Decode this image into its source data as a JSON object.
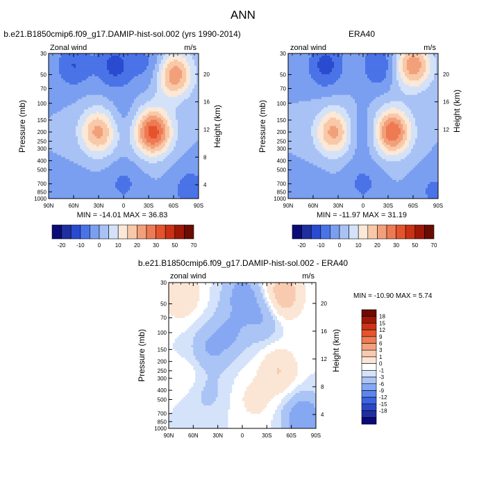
{
  "figure": {
    "title": "ANN"
  },
  "colors": {
    "test_palette": [
      "#0a0a78",
      "#1f2f9e",
      "#2a4bd0",
      "#4a73e8",
      "#7b9ff0",
      "#a8c2f5",
      "#d3e2f8",
      "#fbe8d6",
      "#f8c9a8",
      "#f2a07a",
      "#ee7a54",
      "#e5532c",
      "#c93214",
      "#9e1808",
      "#6b0c02"
    ],
    "diff_palette": [
      "#0a0a78",
      "#1e2ea0",
      "#2a46c8",
      "#3c64e2",
      "#5c86ee",
      "#86a8f2",
      "#aac4f6",
      "#d4e3fa",
      "#ffffff",
      "#fbe6d6",
      "#f8cbb0",
      "#f2a27e",
      "#ee7c56",
      "#e6532e",
      "#cc3316",
      "#9e1808",
      "#6b0c02"
    ]
  },
  "labels": {
    "panel1_title": "b.e21.B1850cmip6.f09_g17.DAMIP-hist-sol.002 (yrs 1990-2014)",
    "panel2_title": "ERA40",
    "panel3_title": "b.e21.B1850cmip6.f09_g17.DAMIP-hist-sol.002 - ERA40",
    "panel1_left": "Zonal wind",
    "panel2_left": "zonal wind",
    "panel3_left": "zonal wind",
    "units": "m/s",
    "ylabel_left": "Pressure (mb)",
    "ylabel_right": "Height (km)",
    "panel1_stats": "MIN = -14.01   MAX = 36.83",
    "panel2_stats": "MIN = -11.97   MAX = 31.19",
    "panel3_stats": "MIN = -10.90   MAX =   5.74"
  },
  "chart_data": [
    {
      "type": "heatmap",
      "title": "b.e21.B1850cmip6.f09_g17.DAMIP-hist-sol.002 (yrs 1990-2014)",
      "variable": "Zonal wind",
      "units": "m/s",
      "ylabel": "Pressure (mb)",
      "ylabel_right": "Height (km)",
      "x_ticks": [
        "90N",
        "60N",
        "30N",
        "0",
        "30S",
        "60S",
        "90S"
      ],
      "y_ticks": [
        30,
        50,
        70,
        100,
        150,
        200,
        250,
        300,
        400,
        500,
        700,
        850,
        1000
      ],
      "y_right_ticks": [
        20,
        16,
        12,
        8,
        4
      ],
      "y_scale": "log",
      "min": -14.01,
      "max": 36.83,
      "colorbar_labels": [
        "-20",
        "-10",
        "0",
        "10",
        "20",
        "30",
        "50",
        "70"
      ],
      "features": [
        {
          "lat": 60,
          "p": 40,
          "value": -10
        },
        {
          "lat": 10,
          "p": 40,
          "value": -12
        },
        {
          "lat": -35,
          "p": 40,
          "value": -8
        },
        {
          "lat": 30,
          "p": 200,
          "value": 22
        },
        {
          "lat": -35,
          "p": 200,
          "value": 33
        },
        {
          "lat": -60,
          "p": 50,
          "value": 25
        },
        {
          "lat": 0,
          "p": 150,
          "value": -4
        },
        {
          "lat": 0,
          "p": 700,
          "value": -6
        },
        {
          "lat": -80,
          "p": 800,
          "value": -8
        },
        {
          "lat": 55,
          "p": 900,
          "value": -4
        }
      ]
    },
    {
      "type": "heatmap",
      "title": "ERA40",
      "variable": "zonal wind",
      "units": "m/s",
      "ylabel": "Pressure (mb)",
      "ylabel_right": "Height (km)",
      "x_ticks": [
        "90N",
        "60N",
        "30N",
        "0",
        "30S",
        "60S",
        "90S"
      ],
      "y_ticks": [
        30,
        50,
        70,
        100,
        150,
        200,
        250,
        300,
        400,
        500,
        700,
        850,
        1000
      ],
      "y_right_ticks": [
        20,
        16,
        12
      ],
      "y_scale": "log",
      "min": -11.97,
      "max": 31.19,
      "colorbar_labels": [
        "-20",
        "-10",
        "0",
        "10",
        "20",
        "30",
        "50",
        "70"
      ],
      "features": [
        {
          "lat": 45,
          "p": 40,
          "value": -12
        },
        {
          "lat": -20,
          "p": 40,
          "value": -10
        },
        {
          "lat": 35,
          "p": 200,
          "value": 22
        },
        {
          "lat": -35,
          "p": 200,
          "value": 30
        },
        {
          "lat": -60,
          "p": 40,
          "value": 24
        },
        {
          "lat": 0,
          "p": 200,
          "value": -6
        },
        {
          "lat": 0,
          "p": 700,
          "value": -6
        },
        {
          "lat": -85,
          "p": 850,
          "value": -6
        },
        {
          "lat": 60,
          "p": 900,
          "value": -4
        }
      ]
    },
    {
      "type": "heatmap",
      "title": "b.e21.B1850cmip6.f09_g17.DAMIP-hist-sol.002 - ERA40",
      "variable": "zonal wind",
      "units": "m/s",
      "ylabel": "Pressure (mb)",
      "ylabel_right": "Height (km)",
      "x_ticks": [
        "90N",
        "60N",
        "30N",
        "0",
        "30S",
        "60S",
        "90S"
      ],
      "y_ticks": [
        30,
        50,
        70,
        100,
        150,
        200,
        250,
        300,
        400,
        500,
        700,
        850,
        1000
      ],
      "y_right_ticks": [
        20,
        16,
        12,
        8,
        4
      ],
      "y_scale": "log",
      "min": -10.9,
      "max": 5.74,
      "colorbar_labels": [
        "18",
        "15",
        "12",
        "9",
        "6",
        "3",
        "1",
        "0",
        "-1",
        "-3",
        "-6",
        "-9",
        "-12",
        "-15",
        "-18"
      ],
      "features": [
        {
          "lat": 75,
          "p": 40,
          "value": 3
        },
        {
          "lat": -50,
          "p": 40,
          "value": 5
        },
        {
          "lat": -45,
          "p": 250,
          "value": 3
        },
        {
          "lat": 0,
          "p": 40,
          "value": -4
        },
        {
          "lat": 15,
          "p": 100,
          "value": -3
        },
        {
          "lat": 40,
          "p": 150,
          "value": -3
        },
        {
          "lat": 45,
          "p": 400,
          "value": -2
        },
        {
          "lat": -25,
          "p": 70,
          "value": -3
        },
        {
          "lat": -15,
          "p": 500,
          "value": 1.5
        },
        {
          "lat": 55,
          "p": 300,
          "value": 1.5
        },
        {
          "lat": -75,
          "p": 800,
          "value": -6
        }
      ]
    }
  ]
}
